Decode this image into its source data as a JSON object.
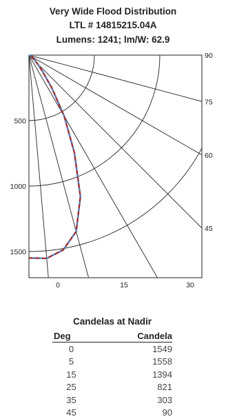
{
  "chart_data": {
    "type": "polar-candela",
    "title_lines": [
      "Very Wide Flood Distribution",
      "LTL # 14815215.04A",
      "Lumens: 1241; lm/W: 62.9"
    ],
    "radial_ticks": [
      500,
      1000,
      1500
    ],
    "horizontal_ticks": [
      0,
      15,
      30
    ],
    "angle_labels": [
      90,
      75,
      60,
      45
    ],
    "max_candela": 1700,
    "curve": [
      {
        "deg": 0,
        "cd": 1549
      },
      {
        "deg": 5,
        "cd": 1558
      },
      {
        "deg": 10,
        "cd": 1510
      },
      {
        "deg": 15,
        "cd": 1394
      },
      {
        "deg": 20,
        "cd": 1150
      },
      {
        "deg": 25,
        "cd": 821
      },
      {
        "deg": 30,
        "cd": 540
      },
      {
        "deg": 35,
        "cd": 303
      },
      {
        "deg": 40,
        "cd": 160
      },
      {
        "deg": 45,
        "cd": 90
      },
      {
        "deg": 55,
        "cd": 40
      },
      {
        "deg": 65,
        "cd": 15
      },
      {
        "deg": 75,
        "cd": 5
      },
      {
        "deg": 90,
        "cd": 0
      }
    ],
    "colors": {
      "curve_a": "#9a2d35",
      "curve_b": "#5a86c5"
    }
  },
  "table": {
    "title": "Candelas at Nadir",
    "headers": [
      "Deg",
      "Candela"
    ],
    "rows": [
      [
        "0",
        "1549"
      ],
      [
        "5",
        "1558"
      ],
      [
        "15",
        "1394"
      ],
      [
        "25",
        "821"
      ],
      [
        "35",
        "303"
      ],
      [
        "45",
        "90"
      ]
    ]
  }
}
